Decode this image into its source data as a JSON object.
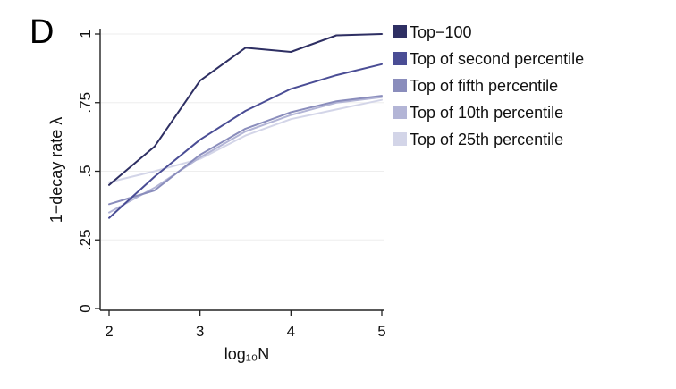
{
  "panel_label": "D",
  "chart_data": {
    "type": "line",
    "xlabel": "log₁₀N",
    "ylabel": "1−decay rate λ",
    "x_ticks": [
      "2",
      "3",
      "4",
      "5"
    ],
    "y_ticks": [
      "0",
      ".25",
      ".5",
      ".75",
      "1"
    ],
    "xlim": [
      2,
      5
    ],
    "ylim": [
      0,
      1
    ],
    "grid": "horizontal",
    "legend_position": "right",
    "x": [
      2,
      2.5,
      3,
      3.5,
      4,
      4.5,
      5
    ],
    "series": [
      {
        "name": "Top−100",
        "color": "#2e2f63",
        "values": [
          0.45,
          0.59,
          0.83,
          0.95,
          0.935,
          0.995,
          1.0
        ]
      },
      {
        "name": "Top of second percentile",
        "color": "#4a4d95",
        "values": [
          0.33,
          0.48,
          0.615,
          0.72,
          0.8,
          0.85,
          0.89
        ]
      },
      {
        "name": "Top of fifth percentile",
        "color": "#8a8dbc",
        "values": [
          0.38,
          0.43,
          0.56,
          0.655,
          0.715,
          0.755,
          0.775
        ]
      },
      {
        "name": "Top of 10th percentile",
        "color": "#b3b5d6",
        "values": [
          0.35,
          0.44,
          0.55,
          0.645,
          0.705,
          0.75,
          0.77
        ]
      },
      {
        "name": "Top of 25th percentile",
        "color": "#d3d5e8",
        "values": [
          0.46,
          0.5,
          0.545,
          0.63,
          0.69,
          0.725,
          0.76
        ]
      }
    ]
  }
}
